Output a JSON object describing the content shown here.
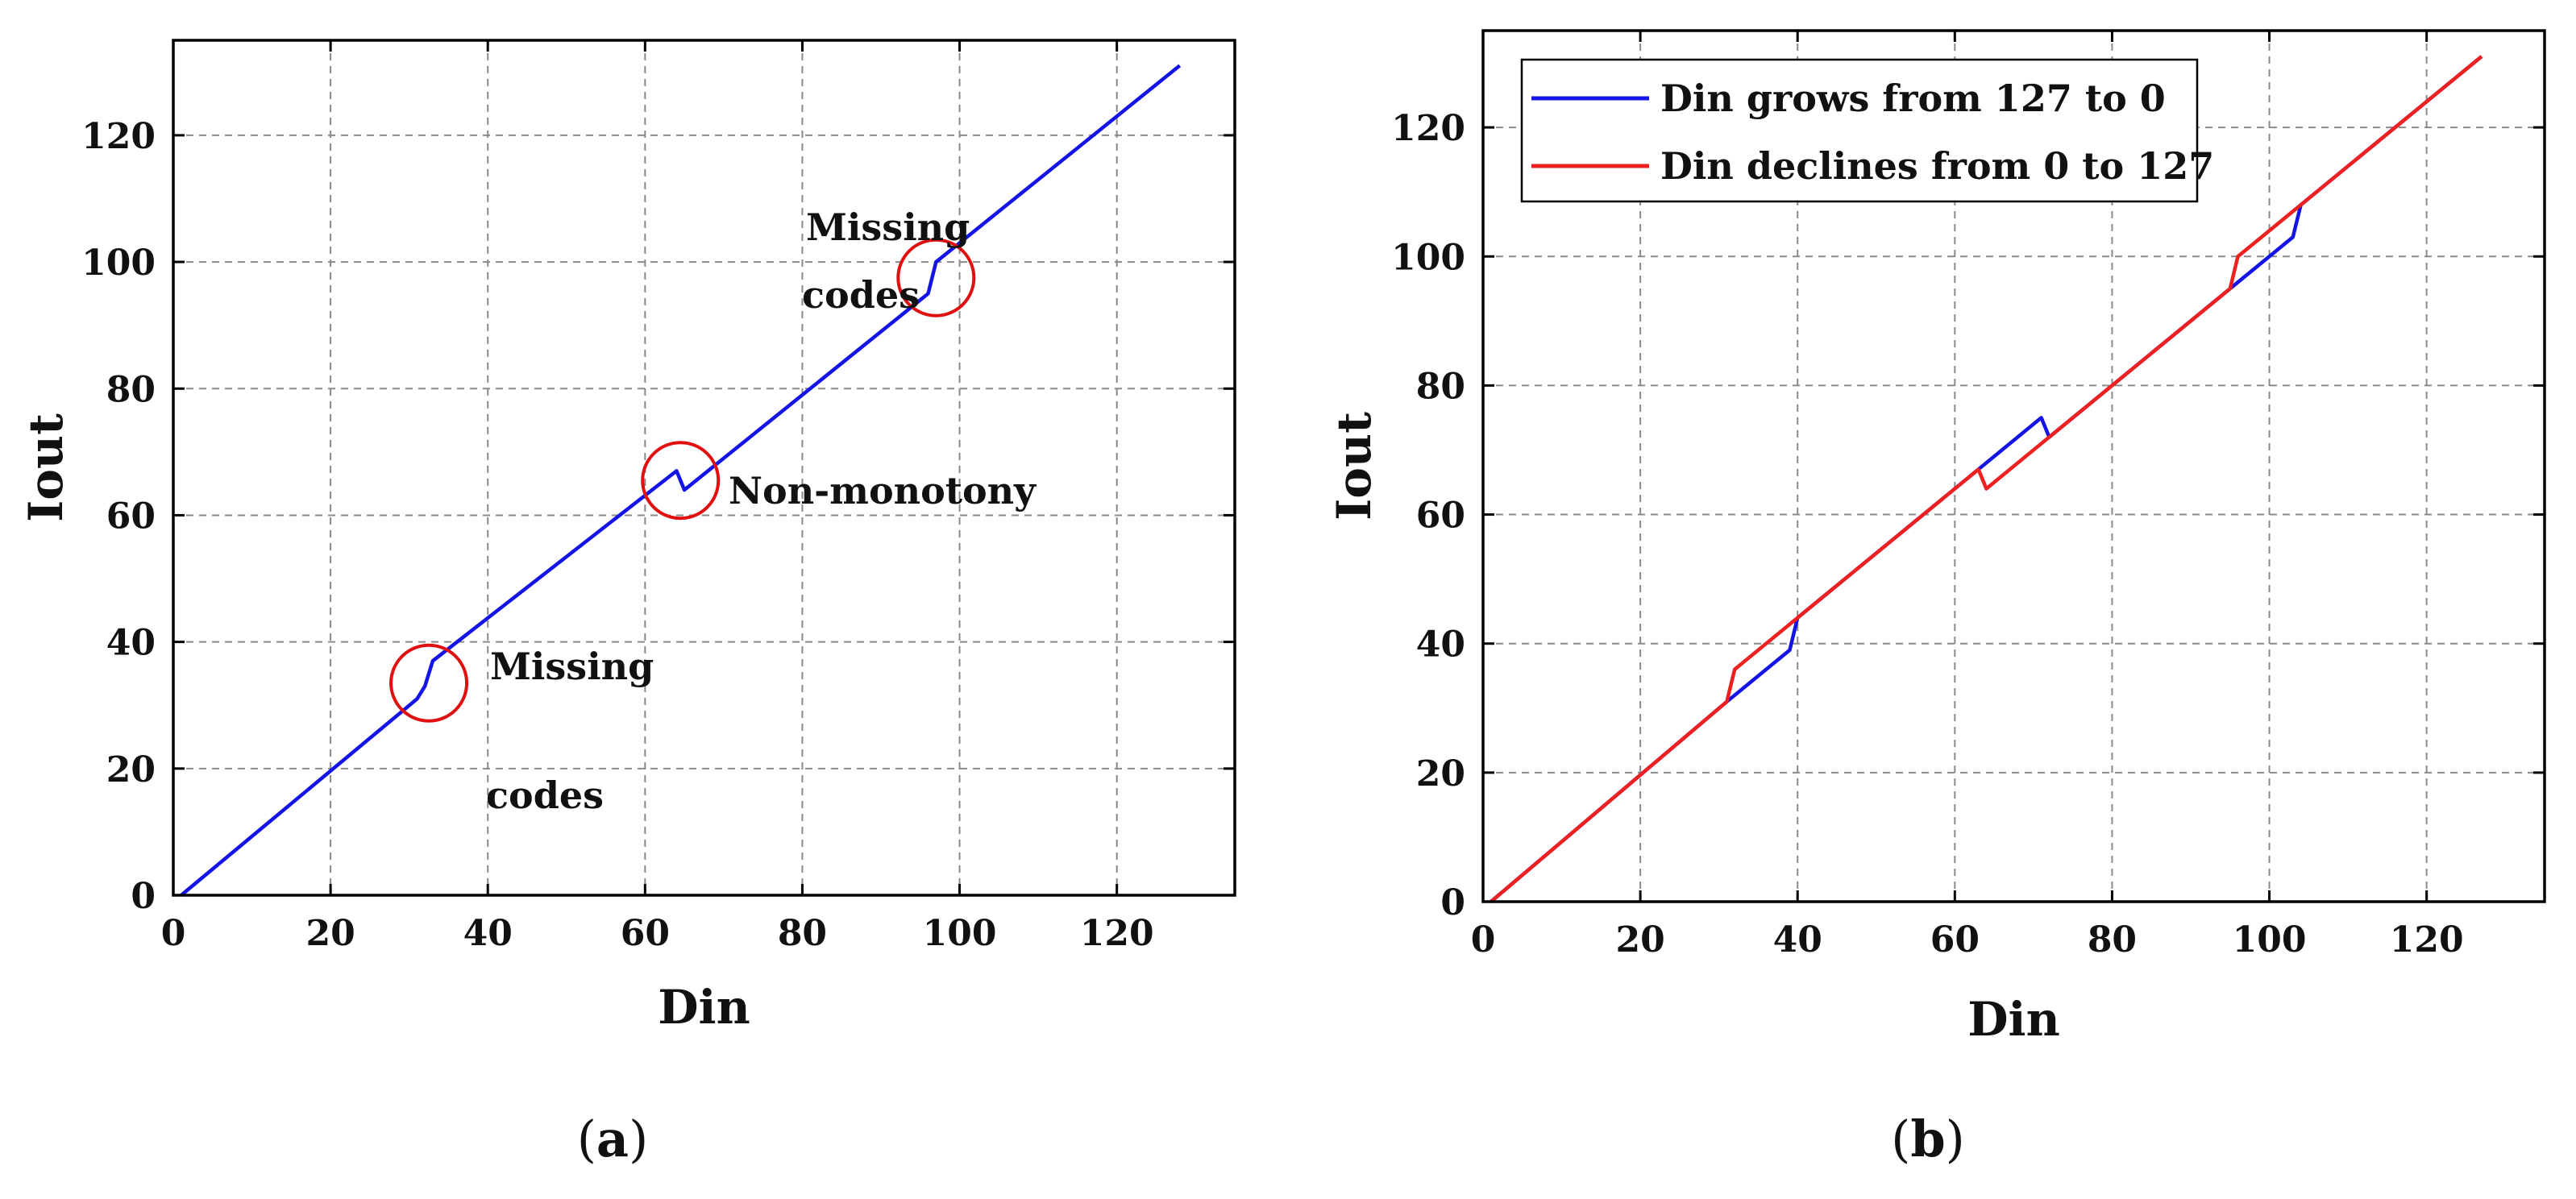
{
  "chart_data": [
    {
      "type": "line",
      "panel_label": "a",
      "xlabel": "Din",
      "ylabel": "Iout",
      "xlim": [
        0,
        135
      ],
      "ylim": [
        0,
        135
      ],
      "xticks": [
        0,
        20,
        40,
        60,
        80,
        100,
        120
      ],
      "yticks": [
        0,
        20,
        40,
        60,
        80,
        100,
        120
      ],
      "grid": true,
      "legend": null,
      "series": [
        {
          "name": "Iout",
          "color": "#1414e6",
          "x": [
            1,
            31,
            32,
            33,
            64,
            65,
            96,
            97,
            128
          ],
          "y": [
            0,
            31,
            33,
            37,
            67,
            64,
            95,
            100,
            131
          ]
        }
      ],
      "annotations": [
        {
          "line1": "Missing",
          "line2": "codes",
          "circle_x": 32.5,
          "circle_y": 33.5,
          "circle_color": "#e01010"
        },
        {
          "line1": "Non-monotony",
          "line2": "",
          "circle_x": 64.5,
          "circle_y": 65.5,
          "circle_color": "#e01010"
        },
        {
          "line1": "Missing",
          "line2": "codes",
          "circle_x": 97,
          "circle_y": 97.5,
          "circle_color": "#e01010"
        }
      ]
    },
    {
      "type": "line",
      "panel_label": "b",
      "xlabel": "Din",
      "ylabel": "Iout",
      "xlim": [
        0,
        135
      ],
      "ylim": [
        0,
        135
      ],
      "xticks": [
        0,
        20,
        40,
        60,
        80,
        100,
        120
      ],
      "yticks": [
        0,
        20,
        40,
        60,
        80,
        100,
        120
      ],
      "grid": true,
      "legend": "top-left",
      "series": [
        {
          "name": "Din grows from 127 to 0",
          "color": "#1414e6",
          "x": [
            1,
            31,
            39,
            40,
            71,
            72,
            103,
            104,
            127
          ],
          "y": [
            0,
            31,
            39,
            44,
            75,
            72,
            103,
            108,
            131
          ]
        },
        {
          "name": "Din declines from 0 to 127",
          "color": "#ee2020",
          "x": [
            1,
            31,
            32,
            40,
            63,
            64,
            72,
            95,
            96,
            104,
            127
          ],
          "y": [
            0,
            31,
            36,
            44,
            67,
            64,
            72,
            95,
            100,
            108,
            131
          ]
        }
      ]
    }
  ]
}
